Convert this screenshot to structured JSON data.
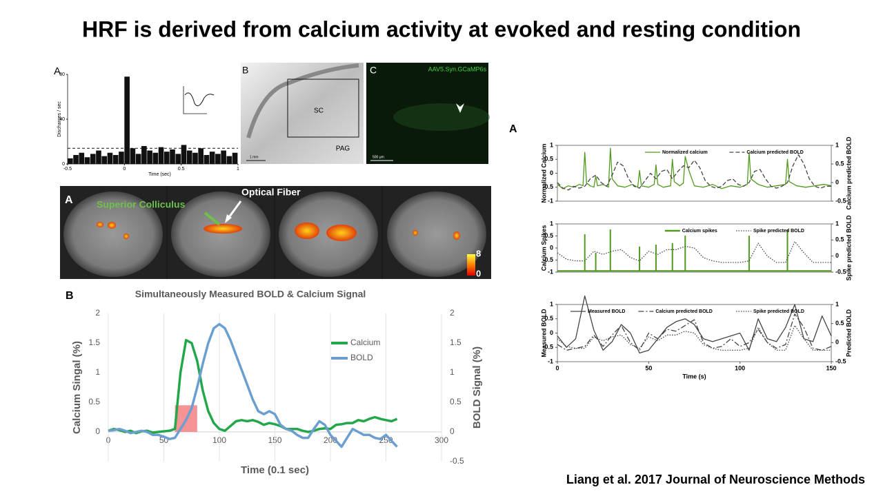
{
  "title": "HRF is derived from calcium activity at evoked and resting condition",
  "citation": "Liang et al. 2017 Journal of Neuroscience Methods",
  "histology": {
    "label_b": "B",
    "sc": "SC",
    "pag": "PAG",
    "scale_b": "1 mm",
    "label_c": "C",
    "virus": "AAV5.Syn.GCaMP6s",
    "scale_c": "500 μm"
  },
  "mri": {
    "label": "A",
    "region": "Superior Colliculus",
    "fiber": "Optical Fiber",
    "colorbar_max": "8",
    "colorbar_min": "0"
  },
  "chart_data": [
    {
      "type": "histogram",
      "panel_label": "A",
      "y_label": "Discharges / sec",
      "x_label": "Time (sec)",
      "bins": [
        -0.5,
        -0.45,
        -0.4,
        -0.35,
        -0.3,
        -0.25,
        -0.2,
        -0.15,
        -0.1,
        -0.05,
        0,
        0.05,
        0.1,
        0.15,
        0.2,
        0.25,
        0.3,
        0.35,
        0.4,
        0.45,
        0.5,
        0.55,
        0.6,
        0.65,
        0.7,
        0.75,
        0.8,
        0.85,
        0.9,
        0.95,
        1
      ],
      "values": [
        5,
        8,
        10,
        6,
        9,
        12,
        7,
        10,
        8,
        11,
        78,
        14,
        9,
        16,
        12,
        10,
        15,
        11,
        13,
        9,
        17,
        12,
        10,
        14,
        8,
        11,
        9,
        12,
        7,
        10
      ],
      "threshold": 14,
      "color": "#111111",
      "xlim": [
        -0.5,
        1
      ],
      "ylim": [
        0,
        80
      ],
      "xticks": [
        -0.5,
        0,
        0.5,
        1
      ],
      "yticks": [
        0,
        40,
        80
      ]
    },
    {
      "type": "line",
      "panel_label": "B",
      "title": "Simultaneously Measured BOLD & Calcium Signal",
      "x_label": "Time (0.1 sec)",
      "y_label": "Calcium Singal (%)",
      "y2_label": "BOLD Signal (%)",
      "x": [
        0,
        5,
        10,
        15,
        20,
        25,
        30,
        35,
        40,
        45,
        50,
        55,
        60,
        65,
        70,
        75,
        80,
        85,
        90,
        95,
        100,
        105,
        110,
        115,
        120,
        125,
        130,
        135,
        140,
        145,
        150,
        155,
        160,
        165,
        170,
        175,
        180,
        185,
        190,
        195,
        200,
        205,
        210,
        215,
        220,
        225,
        230,
        235,
        240,
        245,
        250,
        255,
        260
      ],
      "series": [
        {
          "name": "Calcium",
          "color": "#22a84a",
          "values": [
            0.02,
            0.05,
            0.03,
            0,
            0.02,
            -0.02,
            0.01,
            0.02,
            -0.01,
            0,
            0.01,
            0.02,
            0.05,
            1.0,
            1.55,
            1.5,
            1.2,
            0.7,
            0.35,
            0.15,
            0.05,
            0.02,
            0.1,
            0.18,
            0.2,
            0.18,
            0.2,
            0.17,
            0.12,
            0.15,
            0.13,
            0.1,
            0.05,
            0.05,
            0.05,
            0.02,
            0,
            0.02,
            0.05,
            0.06,
            0.05,
            0.12,
            0.13,
            0.15,
            0.15,
            0.2,
            0.18,
            0.22,
            0.25,
            0.22,
            0.2,
            0.18,
            0.22
          ]
        },
        {
          "name": "BOLD",
          "color": "#6a9fd0",
          "axis": "y2",
          "values": [
            0.02,
            0.03,
            0.05,
            0.02,
            -0.02,
            0,
            0.02,
            0,
            -0.05,
            -0.05,
            -0.08,
            -0.12,
            -0.1,
            0.05,
            0.2,
            0.4,
            0.75,
            1.15,
            1.5,
            1.75,
            1.82,
            1.75,
            1.55,
            1.3,
            1.05,
            0.8,
            0.55,
            0.35,
            0.3,
            0.35,
            0.3,
            0.12,
            0.05,
            0.02,
            -0.05,
            -0.1,
            -0.1,
            0.05,
            0.18,
            0.12,
            -0.05,
            -0.15,
            -0.25,
            -0.1,
            0.05,
            0,
            -0.05,
            -0.05,
            -0.1,
            -0.12,
            -0.05,
            -0.15,
            -0.25
          ]
        }
      ],
      "highlight": {
        "x": [
          60,
          80
        ],
        "y": [
          0,
          0.45
        ],
        "color": "#f4787a"
      },
      "xlim": [
        0,
        300
      ],
      "ylim": [
        -0.5,
        2
      ],
      "y2lim": [
        -0.5,
        2
      ],
      "xticks": [
        0,
        50,
        100,
        150,
        200,
        250,
        300
      ],
      "yticks": [
        0,
        0.5,
        1,
        1.5,
        2
      ],
      "y2ticks": [
        -0.5,
        0,
        0.5,
        1,
        1.5,
        2
      ],
      "xgrid": true
    },
    {
      "type": "line",
      "panel_label": "A",
      "y_label": "Normalized Calcium",
      "y2_label": "Calcium predicted BOLD",
      "series": [
        {
          "name": "Normalized calcium",
          "color": "#4f9a1c",
          "dash": "solid",
          "x": [
            0,
            3,
            6,
            9,
            12,
            14,
            15,
            16,
            18,
            20,
            21,
            22,
            25,
            28,
            29,
            30,
            33,
            37,
            41,
            44,
            45,
            46,
            50,
            53,
            54,
            55,
            58,
            62,
            63,
            64,
            67,
            69,
            70,
            72,
            75,
            80,
            85,
            90,
            95,
            100,
            104,
            105,
            106,
            110,
            115,
            120,
            125,
            126,
            127,
            131,
            136,
            141,
            146,
            150
          ],
          "values": [
            -0.4,
            -0.55,
            -0.45,
            -0.5,
            -0.4,
            -0.45,
            0.75,
            -0.35,
            -0.45,
            -0.5,
            -0.1,
            -0.45,
            -0.4,
            -0.5,
            0.9,
            -0.2,
            -0.45,
            -0.5,
            -0.4,
            -0.5,
            0.1,
            -0.45,
            -0.5,
            -0.4,
            0.3,
            -0.4,
            -0.5,
            -0.45,
            0.5,
            -0.3,
            -0.45,
            -0.35,
            0.6,
            0.1,
            -0.45,
            -0.5,
            -0.4,
            -0.55,
            -0.45,
            -0.5,
            -0.4,
            0.75,
            -0.2,
            -0.4,
            -0.5,
            -0.45,
            -0.4,
            0.5,
            -0.3,
            -0.45,
            -0.5,
            -0.45,
            -0.4,
            -0.45
          ]
        },
        {
          "name": "Calcium predicted BOLD",
          "color": "#444444",
          "dash": "dashed",
          "axis": "y2",
          "x": [
            0,
            3,
            6,
            9,
            12,
            15,
            18,
            21,
            24,
            27,
            30,
            33,
            36,
            39,
            42,
            45,
            48,
            51,
            54,
            57,
            60,
            63,
            66,
            69,
            72,
            75,
            78,
            81,
            84,
            87,
            90,
            93,
            96,
            99,
            102,
            105,
            108,
            111,
            114,
            117,
            120,
            123,
            126,
            129,
            132,
            135,
            138,
            141,
            144,
            147,
            150
          ],
          "values": [
            0,
            -0.15,
            -0.2,
            -0.1,
            -0.15,
            -0.1,
            0.1,
            0.2,
            0,
            -0.1,
            0.2,
            0.55,
            0.45,
            0.1,
            -0.1,
            -0.15,
            0.05,
            0.25,
            0.1,
            0.3,
            0.35,
            0.1,
            0.3,
            0.45,
            0.4,
            0.6,
            0.4,
            0.05,
            -0.1,
            -0.15,
            -0.1,
            0.05,
            0.1,
            -0.05,
            -0.1,
            0,
            0.3,
            0.35,
            0.1,
            -0.1,
            -0.15,
            -0.1,
            0,
            0.45,
            0.75,
            0.5,
            0.1,
            -0.1,
            -0.15,
            -0.1,
            -0.1
          ]
        }
      ],
      "xlim": [
        0,
        150
      ],
      "ylim": [
        -1,
        1
      ],
      "y2lim": [
        -0.5,
        1
      ],
      "yticks": [
        -1,
        -0.5,
        0,
        0.5,
        1
      ],
      "y2ticks": [
        -0.5,
        0,
        0.5,
        1
      ]
    },
    {
      "type": "line",
      "y_label": "Calcium Spikes",
      "y2_label": "Spike predicted BOLD",
      "series": [
        {
          "name": "Calcium spikes",
          "color": "#4f9a1c",
          "style": "spike",
          "baseline": -0.95,
          "x": [
            15,
            21,
            29,
            45,
            54,
            63,
            70,
            105,
            126
          ],
          "values": [
            0.57,
            -0.2,
            0.77,
            0.06,
            0.14,
            0.2,
            0.51,
            0.51,
            0.77
          ]
        },
        {
          "name": "Spike predicted BOLD",
          "color": "#444444",
          "dash": "dotted",
          "axis": "y2",
          "x": [
            0,
            5,
            10,
            15,
            20,
            25,
            30,
            35,
            40,
            45,
            50,
            55,
            60,
            65,
            70,
            75,
            80,
            85,
            90,
            95,
            100,
            105,
            110,
            115,
            120,
            125,
            130,
            135,
            140,
            145,
            150
          ],
          "values": [
            0.1,
            -0.1,
            -0.15,
            -0.15,
            0.15,
            0.05,
            0.15,
            0.2,
            -0.05,
            -0.15,
            0.15,
            0.05,
            0.2,
            0.2,
            0.3,
            0.25,
            -0.05,
            -0.15,
            -0.2,
            -0.2,
            -0.2,
            -0.15,
            0.4,
            0,
            -0.2,
            -0.2,
            0.45,
            0.1,
            -0.2,
            -0.2,
            -0.2
          ]
        }
      ],
      "xlim": [
        0,
        150
      ],
      "ylim": [
        -1,
        1
      ],
      "y2lim": [
        -0.5,
        1
      ],
      "yticks": [
        -1,
        -0.5,
        0,
        0.5,
        1
      ],
      "y2ticks": [
        -0.5,
        0,
        0.5,
        1
      ]
    },
    {
      "type": "line",
      "y_label": "Measured BOLD",
      "y2_label": "Predicted BOLD",
      "x_label": "Time (s)",
      "series": [
        {
          "name": "Measured BOLD",
          "color": "#444444",
          "dash": "solid",
          "x": [
            0,
            5,
            10,
            15,
            20,
            25,
            30,
            35,
            40,
            45,
            50,
            55,
            60,
            65,
            70,
            75,
            80,
            85,
            90,
            95,
            100,
            105,
            110,
            115,
            120,
            125,
            130,
            135,
            140,
            145,
            150
          ],
          "values": [
            -0.1,
            -0.5,
            -0.2,
            1.3,
            0.1,
            -0.6,
            -0.3,
            0.3,
            0,
            -0.7,
            -0.6,
            -0.2,
            0.2,
            0.4,
            0.5,
            0.3,
            -0.2,
            -0.3,
            -0.2,
            -0.1,
            0,
            -0.6,
            0.5,
            -0.2,
            -0.3,
            0.2,
            1,
            -0.2,
            -0.3,
            0.6,
            -0.1
          ]
        },
        {
          "name": "Calcium predicted BOLD",
          "color": "#444444",
          "dash": "dashdot",
          "axis": "y2",
          "x": [
            0,
            5,
            10,
            15,
            20,
            25,
            30,
            35,
            40,
            45,
            50,
            55,
            60,
            65,
            70,
            75,
            80,
            85,
            90,
            95,
            100,
            105,
            110,
            115,
            120,
            125,
            130,
            135,
            140,
            145,
            150
          ],
          "values": [
            -0.05,
            -0.2,
            -0.15,
            -0.1,
            0.2,
            -0.1,
            0.2,
            0.45,
            0,
            -0.2,
            0.25,
            0.1,
            0.35,
            0.3,
            0.45,
            0.6,
            0,
            -0.15,
            -0.1,
            0.1,
            -0.1,
            0,
            0.35,
            0,
            -0.15,
            -0.05,
            0.75,
            0.4,
            -0.15,
            -0.2,
            -0.1
          ]
        },
        {
          "name": "Spike predicted BOLD",
          "color": "#444444",
          "dash": "dotted",
          "axis": "y2",
          "x": [
            0,
            5,
            10,
            15,
            20,
            25,
            30,
            35,
            40,
            45,
            50,
            55,
            60,
            65,
            70,
            75,
            80,
            85,
            90,
            95,
            100,
            105,
            110,
            115,
            120,
            125,
            130,
            135,
            140,
            145,
            150
          ],
          "values": [
            0.1,
            -0.1,
            -0.15,
            -0.15,
            0.15,
            0.05,
            0.15,
            0.2,
            -0.05,
            -0.15,
            0.15,
            0.05,
            0.2,
            0.2,
            0.3,
            0.25,
            -0.05,
            -0.15,
            -0.2,
            -0.2,
            -0.2,
            -0.15,
            0.4,
            0,
            -0.2,
            -0.2,
            0.45,
            0.1,
            -0.2,
            -0.2,
            -0.2
          ]
        }
      ],
      "xlim": [
        0,
        150
      ],
      "ylim": [
        -1,
        1
      ],
      "y2lim": [
        -0.5,
        1
      ],
      "xticks": [
        0,
        50,
        100,
        150
      ],
      "yticks": [
        -1,
        -0.5,
        0,
        0.5,
        1
      ],
      "y2ticks": [
        -0.5,
        0,
        0.5,
        1
      ]
    }
  ]
}
